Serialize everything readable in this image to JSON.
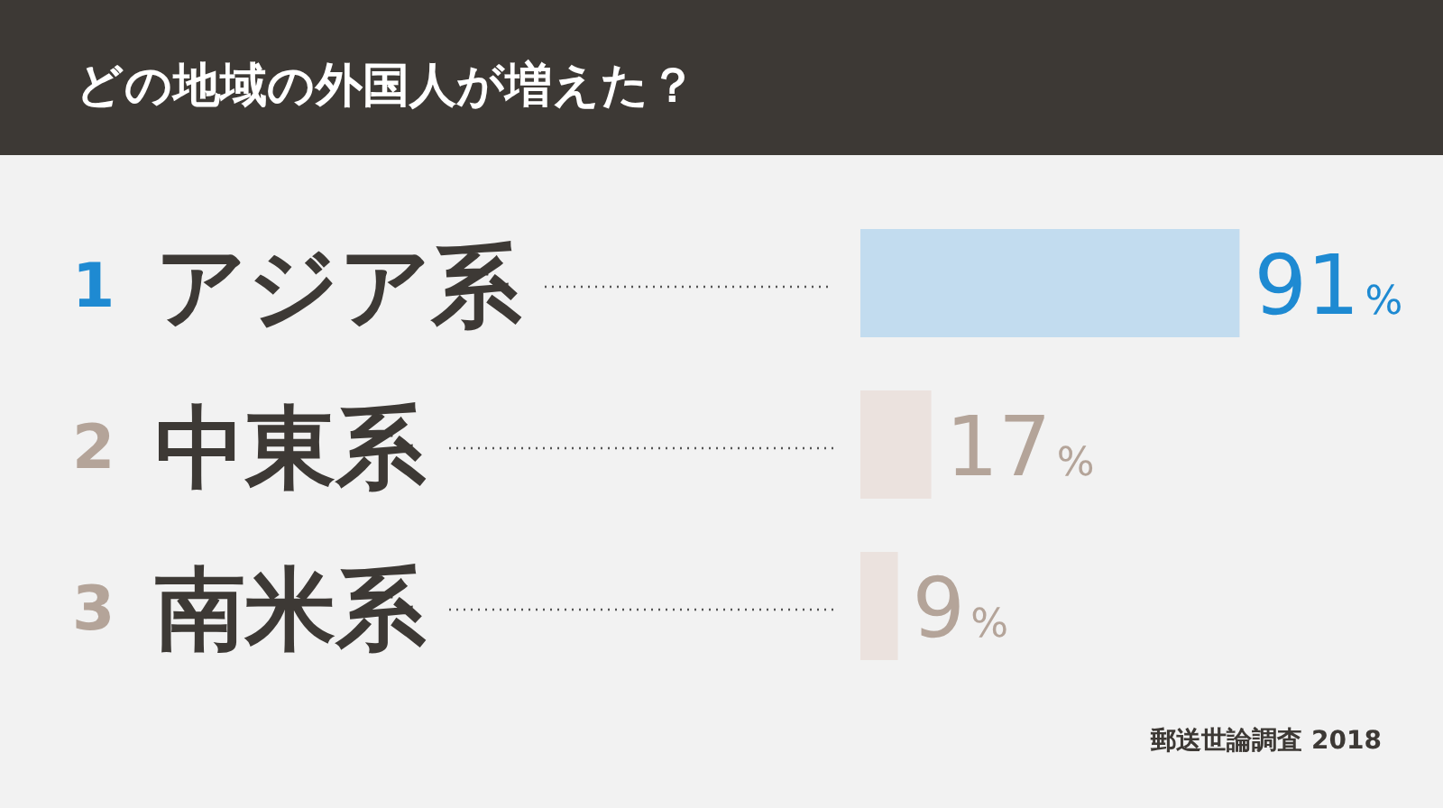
{
  "chart_data": {
    "type": "bar",
    "orientation": "horizontal",
    "title": "どの地域の外国人が増えた？",
    "categories": [
      "アジア系",
      "中東系",
      "南米系"
    ],
    "values": [
      91,
      17,
      9
    ],
    "colors": [
      "#c2dcef",
      "#ebe2de",
      "#ebe2de"
    ],
    "value_labels": [
      "91%",
      "17%",
      "9%"
    ],
    "annotations": [
      "1",
      "2",
      "3",
      "郵送世論調査 2018"
    ]
  }
}
